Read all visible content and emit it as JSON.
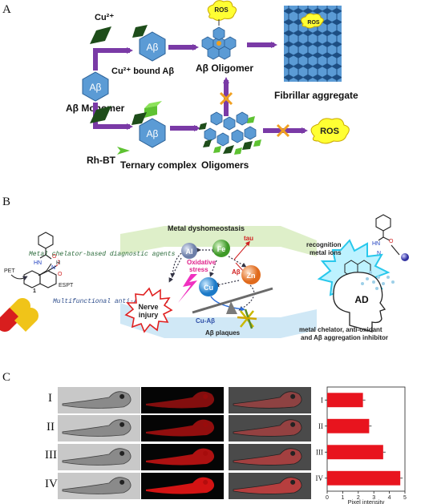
{
  "panels": {
    "a": "A",
    "b": "B",
    "c": "C"
  },
  "panel_a": {
    "cu": "Cu²⁺",
    "cu_bound": "Cu²⁺ bound Aβ",
    "monomer_hex": "Aβ",
    "monomer": "Aβ Monomer",
    "oligomer": "Aβ Oligomer",
    "fibrillar": "Fibrillar aggregate",
    "rhbt": "Rh-BT",
    "ternary": "Ternary complex",
    "oligomers": "Oligomers",
    "ros_top": "ROS",
    "ros_fibril": "ROS",
    "ros_right": "ROS",
    "hex_label_1": "Aβ",
    "hex_label_2": "Aβ",
    "colors": {
      "arrow": "#7a3aa6",
      "hex": "#5b9bd5",
      "green": "#5ec232",
      "dark_green": "#1e4d1a",
      "ros": "#ffff33",
      "cross": "#f0a020"
    }
  },
  "panel_b": {
    "dyshomeostasis": "Metal dyshomeostasis",
    "chelator_diag": "Metal chelator-based diagnostic agents",
    "multifunctional": "Multifunctional anti-AD agents",
    "pet": "PET",
    "espt": "ESPT",
    "compound": "1",
    "recognition_1": "recognition",
    "recognition_2": "metal ions",
    "ad": "AD",
    "therapy_1": "metal chelator, anti-oxidant",
    "therapy_2": "and Aβ aggregation inhibitor",
    "nerve_1": "Nerve",
    "nerve_2": "injury",
    "oxidative_1": "Oxidative",
    "oxidative_2": "stress",
    "al": "Al",
    "fe": "Fe",
    "cu": "Cu",
    "zn": "Zn",
    "tau": "tau",
    "abeta": "Aβ",
    "cu_abeta": "Cu-Aβ",
    "plaques": "Aβ plaques",
    "struct_hn": "HN",
    "struct_o": "O",
    "struct_n": "N",
    "struct_h": "H",
    "struct_o2": "O",
    "struct_hn2": "HN",
    "struct_o3": "O",
    "struct_n2": "N",
    "colors": {
      "al": "#7d8fb8",
      "fe": "#5cab3c",
      "cu": "#2e8fd8",
      "zn": "#f0883a",
      "nerve": "#e02020",
      "oxidative": "#e0208a",
      "band_green": "#d8ecc0",
      "band_blue": "#c8e4f4"
    }
  },
  "panel_c": {
    "rows": [
      "I",
      "II",
      "III",
      "IV"
    ],
    "chart_data": {
      "type": "bar",
      "orientation": "horizontal",
      "categories": [
        "I",
        "II",
        "III",
        "IV"
      ],
      "values": [
        2.3,
        2.7,
        3.6,
        4.7
      ],
      "xlabel": "Pixel intensity",
      "xlim": [
        0,
        5
      ],
      "xticks": [
        "0",
        "1",
        "2",
        "3",
        "4",
        "5"
      ],
      "bar_color": "#e8141e"
    }
  }
}
